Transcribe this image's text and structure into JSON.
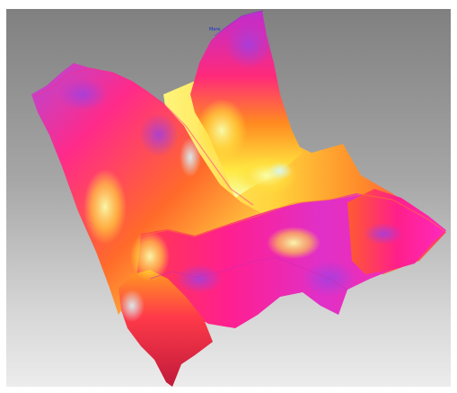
{
  "viewport": {
    "tag": "Mere",
    "colors": {
      "background_top": "#808080",
      "background_bottom": "#ececec",
      "magenta": "#ff1fa0",
      "purple": "#b040e0",
      "red": "#ff2a55",
      "orange": "#ff9a20",
      "yellow": "#ffe83a",
      "pale_yellow": "#f4ff9a",
      "cyan_highlight": "#cdf6ff"
    }
  }
}
